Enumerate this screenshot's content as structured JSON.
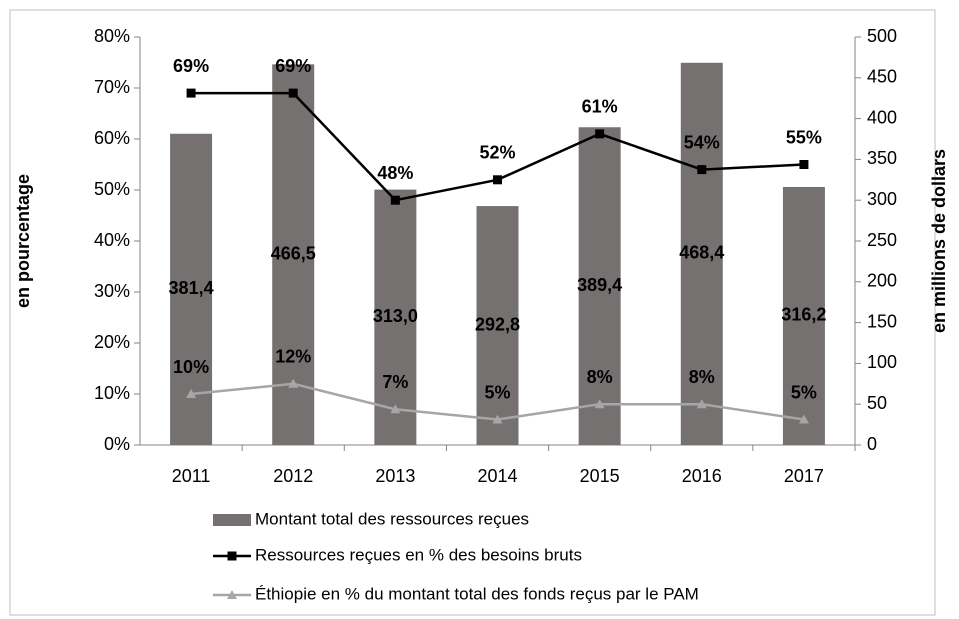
{
  "chart_data": {
    "type": "bar",
    "categories": [
      "2011",
      "2012",
      "2013",
      "2014",
      "2015",
      "2016",
      "2017"
    ],
    "y_label": "en pourcentage",
    "y2_label": "en millions de dollars",
    "ylim": [
      0,
      80
    ],
    "yticks": [
      {
        "value": 0,
        "label": "0%"
      },
      {
        "value": 10,
        "label": "10%"
      },
      {
        "value": 20,
        "label": "20%"
      },
      {
        "value": 30,
        "label": "30%"
      },
      {
        "value": 40,
        "label": "40%"
      },
      {
        "value": 50,
        "label": "50%"
      },
      {
        "value": 60,
        "label": "60%"
      },
      {
        "value": 70,
        "label": "70%"
      },
      {
        "value": 80,
        "label": "80%"
      }
    ],
    "y2lim": [
      0,
      500
    ],
    "y2ticks": [
      0,
      50,
      100,
      150,
      200,
      250,
      300,
      350,
      400,
      450,
      500
    ],
    "series": [
      {
        "name": "Montant total des ressources reçues",
        "type": "bar",
        "axis": "y2",
        "color": "#767171",
        "values": [
          381.4,
          466.5,
          313.0,
          292.8,
          389.4,
          468.4,
          316.2
        ],
        "value_labels": [
          "381,4",
          "466,5",
          "313,0",
          "292,8",
          "389,4",
          "468,4",
          "316,2"
        ]
      },
      {
        "name": "Ressources reçues en % des besoins bruts",
        "type": "line",
        "marker": "square",
        "color": "#000000",
        "values": [
          69,
          69,
          48,
          52,
          61,
          54,
          55
        ],
        "value_labels": [
          "69%",
          "69%",
          "48%",
          "52%",
          "61%",
          "54%",
          "55%"
        ]
      },
      {
        "name": "Éthiopie en % du montant total des fonds reçus par le PAM",
        "type": "line",
        "marker": "triangle",
        "color": "#a6a6a6",
        "values": [
          10,
          12,
          7,
          5,
          8,
          8,
          5
        ],
        "value_labels": [
          "10%",
          "12%",
          "7%",
          "5%",
          "8%",
          "8%",
          "5%"
        ]
      }
    ]
  }
}
